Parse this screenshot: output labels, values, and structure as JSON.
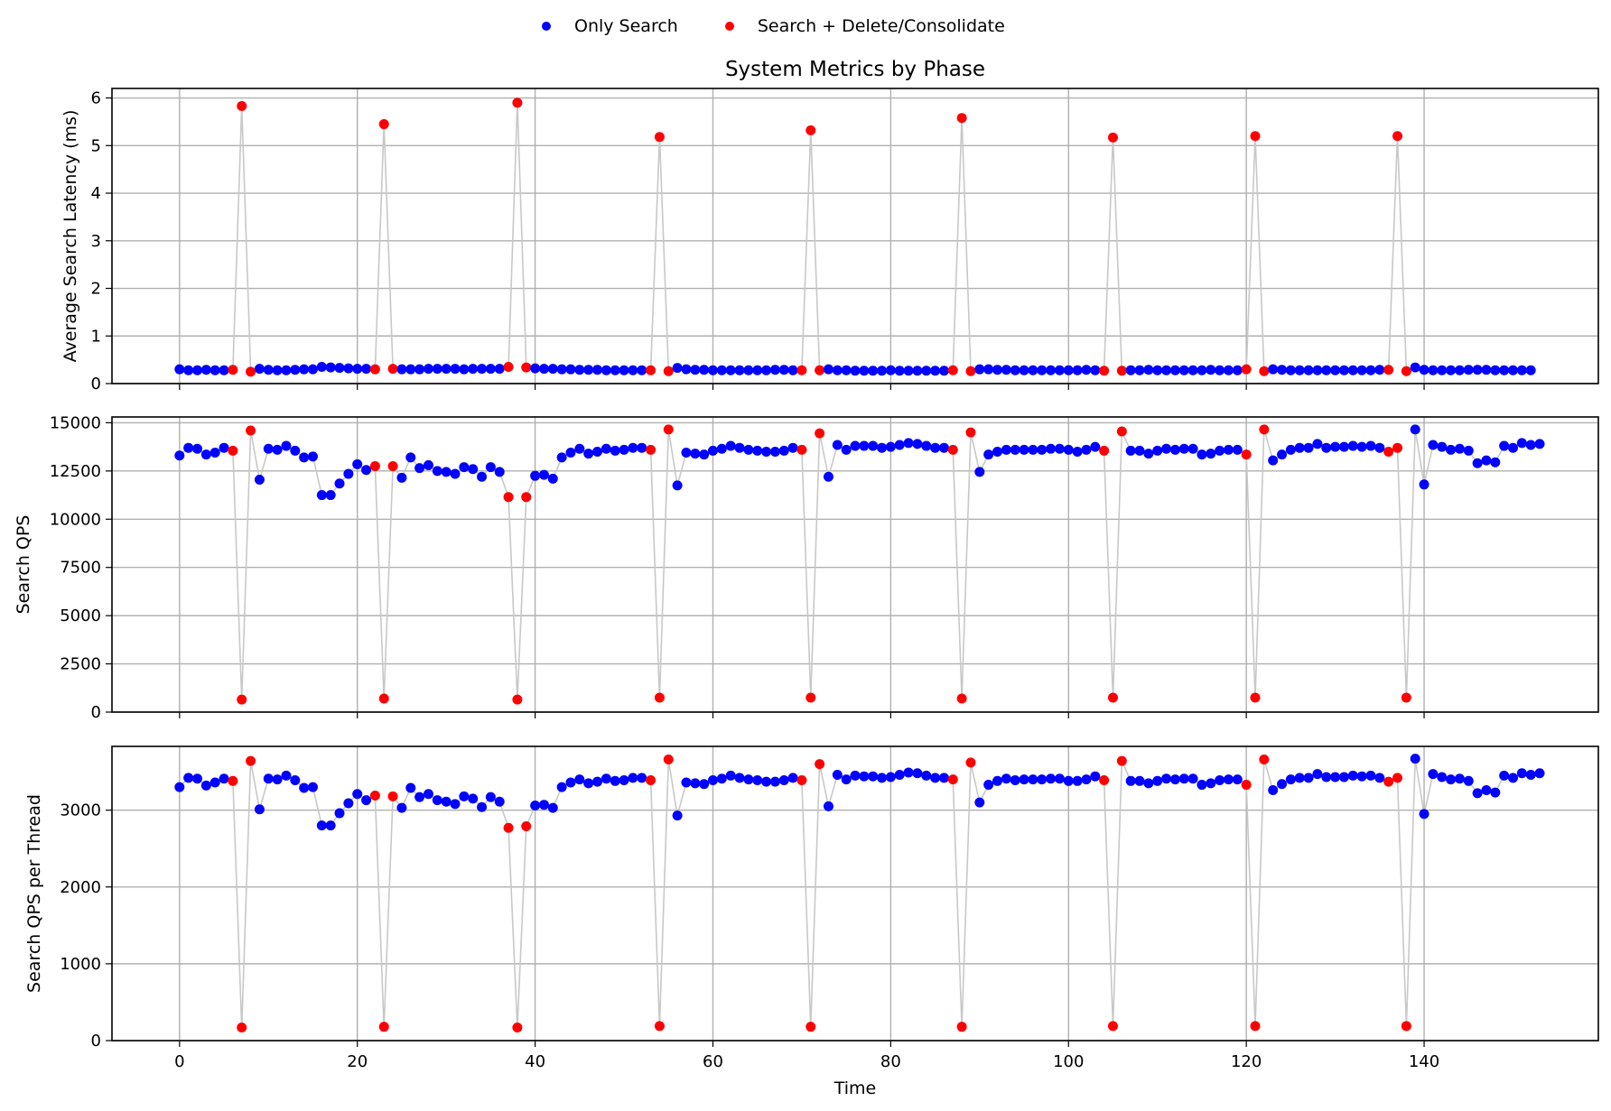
{
  "chart_data": {
    "type": "scatter",
    "title": "System Metrics by Phase",
    "xlabel": "Time",
    "legend": {
      "placement": "top-center",
      "entries": [
        {
          "label": "Only Search",
          "color": "#0000ff"
        },
        {
          "label": "Search + Delete/Consolidate",
          "color": "#ff0000"
        }
      ]
    },
    "x_ticks": [
      0,
      20,
      40,
      60,
      80,
      100,
      120,
      140
    ],
    "xlim": [
      -7.6,
      159.6
    ],
    "grid": true,
    "connector_color": "#c8c8c8",
    "red_indices": [
      6,
      7,
      8,
      22,
      23,
      24,
      37,
      38,
      39,
      53,
      54,
      55,
      70,
      71,
      72,
      87,
      88,
      89,
      104,
      105,
      106,
      120,
      121,
      122,
      136,
      137,
      138
    ],
    "panels": [
      {
        "ylabel": "Average Search Latency (ms)",
        "ylim": [
          0,
          6.2
        ],
        "y_ticks": [
          0,
          1,
          2,
          3,
          4,
          5,
          6
        ],
        "values": [
          0.3,
          0.28,
          0.28,
          0.29,
          0.28,
          0.28,
          0.29,
          5.83,
          0.25,
          0.31,
          0.29,
          0.28,
          0.28,
          0.29,
          0.3,
          0.3,
          0.35,
          0.34,
          0.33,
          0.32,
          0.31,
          0.31,
          0.3,
          5.45,
          0.31,
          0.3,
          0.3,
          0.3,
          0.31,
          0.31,
          0.31,
          0.31,
          0.3,
          0.31,
          0.31,
          0.31,
          0.31,
          0.35,
          5.9,
          0.34,
          0.32,
          0.31,
          0.31,
          0.3,
          0.3,
          0.29,
          0.29,
          0.29,
          0.28,
          0.28,
          0.28,
          0.28,
          0.28,
          0.28,
          5.18,
          0.26,
          0.33,
          0.3,
          0.29,
          0.29,
          0.28,
          0.28,
          0.28,
          0.28,
          0.28,
          0.28,
          0.28,
          0.29,
          0.29,
          0.28,
          0.28,
          5.32,
          0.28,
          0.3,
          0.28,
          0.28,
          0.27,
          0.27,
          0.27,
          0.27,
          0.28,
          0.27,
          0.27,
          0.27,
          0.27,
          0.27,
          0.27,
          0.28,
          5.58,
          0.26,
          0.3,
          0.3,
          0.29,
          0.29,
          0.28,
          0.28,
          0.28,
          0.28,
          0.28,
          0.28,
          0.28,
          0.28,
          0.29,
          0.28,
          0.27,
          5.17,
          0.27,
          0.28,
          0.28,
          0.29,
          0.28,
          0.28,
          0.28,
          0.28,
          0.28,
          0.28,
          0.29,
          0.28,
          0.28,
          0.28,
          0.3,
          5.2,
          0.26,
          0.3,
          0.29,
          0.28,
          0.28,
          0.28,
          0.28,
          0.28,
          0.28,
          0.28,
          0.28,
          0.28,
          0.28,
          0.29,
          0.29,
          5.2,
          0.26,
          0.34,
          0.29,
          0.28,
          0.28,
          0.28,
          0.28,
          0.29,
          0.29,
          0.29,
          0.28,
          0.28,
          0.28,
          0.28,
          0.28
        ]
      },
      {
        "ylabel": "Search QPS",
        "ylim": [
          0,
          15300
        ],
        "y_ticks": [
          0,
          2500,
          5000,
          7500,
          10000,
          12500,
          15000
        ],
        "values": [
          13300,
          13700,
          13650,
          13350,
          13450,
          13700,
          13550,
          650,
          14600,
          12050,
          13650,
          13600,
          13800,
          13550,
          13200,
          13250,
          11250,
          11250,
          11850,
          12350,
          12850,
          12550,
          12750,
          700,
          12750,
          12150,
          13200,
          12650,
          12800,
          12500,
          12450,
          12350,
          12700,
          12600,
          12200,
          12700,
          12450,
          11150,
          650,
          11150,
          12250,
          12300,
          12100,
          13200,
          13450,
          13650,
          13400,
          13500,
          13650,
          13550,
          13600,
          13700,
          13700,
          13600,
          750,
          14650,
          11750,
          13450,
          13400,
          13350,
          13550,
          13650,
          13800,
          13700,
          13600,
          13550,
          13500,
          13500,
          13550,
          13700,
          13600,
          750,
          14450,
          12200,
          13850,
          13600,
          13800,
          13800,
          13800,
          13700,
          13750,
          13850,
          13950,
          13900,
          13800,
          13700,
          13700,
          13600,
          700,
          14500,
          12450,
          13350,
          13500,
          13600,
          13600,
          13600,
          13600,
          13600,
          13650,
          13650,
          13600,
          13500,
          13600,
          13750,
          13550,
          750,
          14550,
          13550,
          13550,
          13400,
          13550,
          13650,
          13600,
          13650,
          13650,
          13350,
          13400,
          13550,
          13600,
          13600,
          13350,
          750,
          14650,
          13050,
          13350,
          13600,
          13700,
          13700,
          13900,
          13700,
          13750,
          13750,
          13800,
          13750,
          13800,
          13700,
          13500,
          13700,
          750,
          14650,
          11800,
          13850,
          13750,
          13600,
          13650,
          13550,
          12900,
          13050,
          12950,
          13800,
          13700,
          13950,
          13850,
          13900
        ]
      },
      {
        "ylabel": "Search QPS per Thread",
        "ylim": [
          0,
          3830
        ],
        "y_ticks": [
          0,
          1000,
          2000,
          3000
        ],
        "values": [
          3300,
          3420,
          3410,
          3320,
          3360,
          3410,
          3380,
          170,
          3640,
          3010,
          3410,
          3400,
          3450,
          3390,
          3290,
          3300,
          2800,
          2800,
          2960,
          3090,
          3210,
          3130,
          3190,
          180,
          3180,
          3030,
          3290,
          3170,
          3210,
          3130,
          3110,
          3080,
          3180,
          3150,
          3040,
          3170,
          3110,
          2770,
          170,
          2790,
          3060,
          3070,
          3030,
          3300,
          3360,
          3400,
          3350,
          3370,
          3410,
          3380,
          3390,
          3420,
          3420,
          3390,
          190,
          3660,
          2930,
          3360,
          3350,
          3340,
          3390,
          3410,
          3450,
          3420,
          3400,
          3390,
          3370,
          3370,
          3390,
          3420,
          3390,
          180,
          3600,
          3050,
          3460,
          3400,
          3450,
          3440,
          3440,
          3420,
          3430,
          3460,
          3490,
          3480,
          3450,
          3420,
          3420,
          3400,
          180,
          3620,
          3100,
          3330,
          3380,
          3410,
          3390,
          3400,
          3400,
          3400,
          3410,
          3410,
          3380,
          3380,
          3400,
          3440,
          3390,
          190,
          3640,
          3380,
          3380,
          3350,
          3380,
          3410,
          3400,
          3410,
          3410,
          3330,
          3350,
          3390,
          3400,
          3400,
          3330,
          190,
          3660,
          3260,
          3340,
          3400,
          3420,
          3420,
          3470,
          3430,
          3430,
          3430,
          3450,
          3440,
          3450,
          3420,
          3370,
          3420,
          190,
          3670,
          2950,
          3470,
          3430,
          3400,
          3410,
          3380,
          3220,
          3260,
          3230,
          3450,
          3420,
          3480,
          3460,
          3480
        ]
      }
    ]
  }
}
